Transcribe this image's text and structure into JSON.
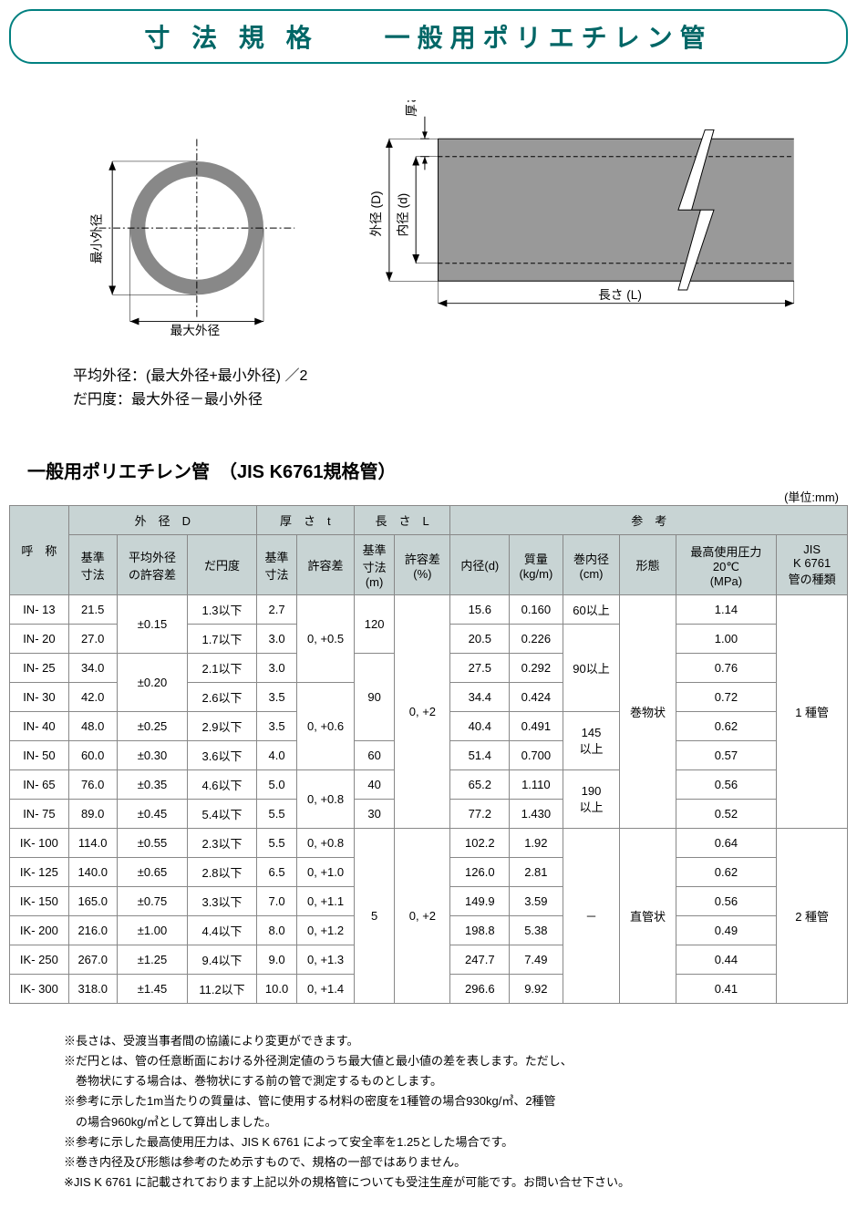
{
  "title": "寸 法 規 格　　一般用ポリエチレン管",
  "diagram": {
    "min_od_label": "最小外径",
    "max_od_label": "最大外径",
    "od_label": "外径 (D)",
    "id_label": "内径 (d)",
    "thickness_label": "厚さ (t)",
    "length_label": "長さ (L)",
    "pipe_fill": "#888888",
    "pipe_inner_fill": "#a0a0a0",
    "line_color": "#000000"
  },
  "formula1": "平均外径：(最大外径+最小外径) ／2",
  "formula2": "だ円度：最大外径－最小外径",
  "section_title": "一般用ポリエチレン管　（JIS K6761規格管）",
  "unit_label": "(単位:mm)",
  "headers": {
    "name": "呼　称",
    "od": "外　径　D",
    "th": "厚　さ　t",
    "len": "長　さ　L",
    "ref": "参　考",
    "std_dim": "基準\n寸法",
    "avg_tol": "平均外径\nの許容差",
    "oval": "だ円度",
    "tol": "許容差",
    "std_len": "基準\n寸法\n(m)",
    "tol_pct": "許容差\n(%)",
    "id": "内径(d)",
    "mass": "質量\n(kg/m)",
    "coil_id": "巻内径\n(cm)",
    "form": "形態",
    "pressure": "最高使用圧力\n20℃\n(MPa)",
    "jis": "JIS\nK 6761\n管の種類"
  },
  "rows": [
    {
      "name": "IN- 13",
      "std": "21.5",
      "avg": "±0.15",
      "oval": "1.3以下",
      "tstd": "2.7",
      "ttol": "0, +0.5",
      "lstd": "120",
      "ltol": "0, +2",
      "id": "15.6",
      "mass": "0.160",
      "coil": "60以上",
      "form": "巻物状",
      "p": "1.14",
      "jis": "1 種管"
    },
    {
      "name": "IN- 20",
      "std": "27.0",
      "avg": "",
      "oval": "1.7以下",
      "tstd": "3.0",
      "ttol": "",
      "lstd": "",
      "ltol": "",
      "id": "20.5",
      "mass": "0.226",
      "coil": "90以上",
      "form": "",
      "p": "1.00",
      "jis": ""
    },
    {
      "name": "IN- 25",
      "std": "34.0",
      "avg": "±0.20",
      "oval": "2.1以下",
      "tstd": "3.0",
      "ttol": "",
      "lstd": "90",
      "ltol": "",
      "id": "27.5",
      "mass": "0.292",
      "coil": "",
      "form": "",
      "p": "0.76",
      "jis": ""
    },
    {
      "name": "IN- 30",
      "std": "42.0",
      "avg": "",
      "oval": "2.6以下",
      "tstd": "3.5",
      "ttol": "0, +0.6",
      "lstd": "",
      "ltol": "",
      "id": "34.4",
      "mass": "0.424",
      "coil": "",
      "form": "",
      "p": "0.72",
      "jis": ""
    },
    {
      "name": "IN- 40",
      "std": "48.0",
      "avg": "±0.25",
      "oval": "2.9以下",
      "tstd": "3.5",
      "ttol": "",
      "lstd": "",
      "ltol": "",
      "id": "40.4",
      "mass": "0.491",
      "coil": "145\n以上",
      "form": "",
      "p": "0.62",
      "jis": ""
    },
    {
      "name": "IN- 50",
      "std": "60.0",
      "avg": "±0.30",
      "oval": "3.6以下",
      "tstd": "4.0",
      "ttol": "",
      "lstd": "60",
      "ltol": "",
      "id": "51.4",
      "mass": "0.700",
      "coil": "",
      "form": "",
      "p": "0.57",
      "jis": ""
    },
    {
      "name": "IN- 65",
      "std": "76.0",
      "avg": "±0.35",
      "oval": "4.6以下",
      "tstd": "5.0",
      "ttol": "0, +0.8",
      "lstd": "40",
      "ltol": "",
      "id": "65.2",
      "mass": "1.110",
      "coil": "190\n以上",
      "form": "",
      "p": "0.56",
      "jis": ""
    },
    {
      "name": "IN- 75",
      "std": "89.0",
      "avg": "±0.45",
      "oval": "5.4以下",
      "tstd": "5.5",
      "ttol": "",
      "lstd": "30",
      "ltol": "",
      "id": "77.2",
      "mass": "1.430",
      "coil": "",
      "form": "",
      "p": "0.52",
      "jis": ""
    },
    {
      "name": "IK- 100",
      "std": "114.0",
      "avg": "±0.55",
      "oval": "2.3以下",
      "tstd": "5.5",
      "ttol": "0, +0.8",
      "lstd": "5",
      "ltol": "0, +2",
      "id": "102.2",
      "mass": "1.92",
      "coil": "－",
      "form": "直管状",
      "p": "0.64",
      "jis": "2 種管"
    },
    {
      "name": "IK- 125",
      "std": "140.0",
      "avg": "±0.65",
      "oval": "2.8以下",
      "tstd": "6.5",
      "ttol": "0, +1.0",
      "lstd": "",
      "ltol": "",
      "id": "126.0",
      "mass": "2.81",
      "coil": "",
      "form": "",
      "p": "0.62",
      "jis": ""
    },
    {
      "name": "IK- 150",
      "std": "165.0",
      "avg": "±0.75",
      "oval": "3.3以下",
      "tstd": "7.0",
      "ttol": "0, +1.1",
      "lstd": "",
      "ltol": "",
      "id": "149.9",
      "mass": "3.59",
      "coil": "",
      "form": "",
      "p": "0.56",
      "jis": ""
    },
    {
      "name": "IK- 200",
      "std": "216.0",
      "avg": "±1.00",
      "oval": "4.4以下",
      "tstd": "8.0",
      "ttol": "0, +1.2",
      "lstd": "",
      "ltol": "",
      "id": "198.8",
      "mass": "5.38",
      "coil": "",
      "form": "",
      "p": "0.49",
      "jis": ""
    },
    {
      "name": "IK- 250",
      "std": "267.0",
      "avg": "±1.25",
      "oval": "9.4以下",
      "tstd": "9.0",
      "ttol": "0, +1.3",
      "lstd": "",
      "ltol": "",
      "id": "247.7",
      "mass": "7.49",
      "coil": "",
      "form": "",
      "p": "0.44",
      "jis": ""
    },
    {
      "name": "IK- 300",
      "std": "318.0",
      "avg": "±1.45",
      "oval": "11.2以下",
      "tstd": "10.0",
      "ttol": "0, +1.4",
      "lstd": "",
      "ltol": "",
      "id": "296.6",
      "mass": "9.92",
      "coil": "",
      "form": "",
      "p": "0.41",
      "jis": ""
    }
  ],
  "table_style": {
    "header_bg": "#c8d4d4",
    "border_color": "#888888"
  },
  "notes": [
    "※長さは、受渡当事者間の協議により変更ができます。",
    "※だ円とは、管の任意断面における外径測定値のうち最大値と最小値の差を表します。ただし、",
    "　巻物状にする場合は、巻物状にする前の管で測定するものとします。",
    "※参考に示した1m当たりの質量は、管に使用する材料の密度を1種管の場合930kg/㎥、2種管",
    "　の場合960kg/㎥として算出しました。",
    "※参考に示した最高使用圧力は、JIS K 6761 によって安全率を1.25とした場合です。",
    "※巻き内径及び形態は参考のため示すもので、規格の一部ではありません。",
    "※JIS K 6761 に記載されております上記以外の規格管についても受注生産が可能です。お問い合せ下さい。"
  ]
}
